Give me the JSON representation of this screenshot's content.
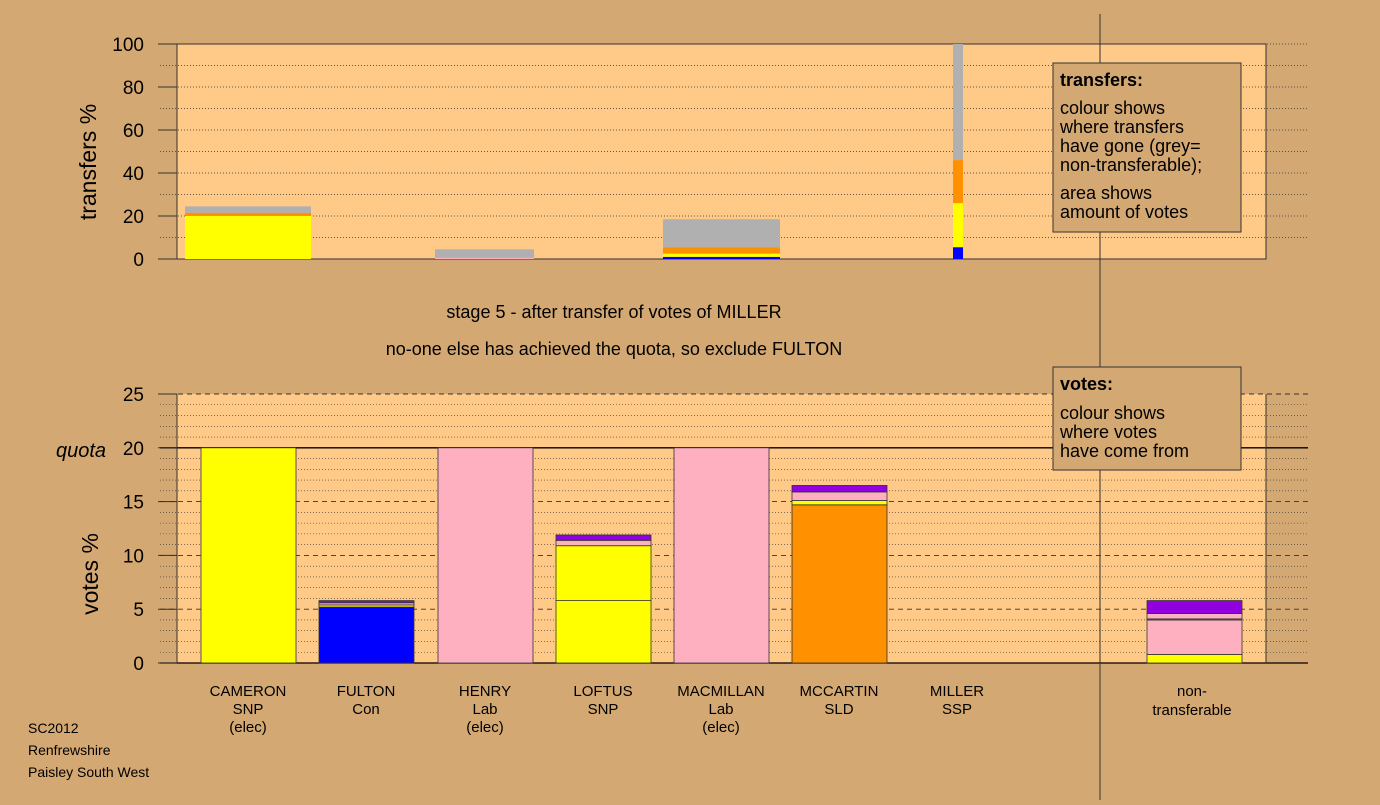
{
  "colors": {
    "background": "#d4a872",
    "plot_bg": "#ffc987",
    "SNP": "#ffff00",
    "Con": "#0000ff",
    "Lab": "#ffb0c0",
    "SLD": "#ff9000",
    "SSP": "#9000e0",
    "non_transferable": "#b0b0b0"
  },
  "transfers_panel": {
    "ylabel": "transfers %",
    "yticks": [
      "0",
      "20",
      "40",
      "60",
      "80",
      "100"
    ],
    "legend": {
      "title": "transfers:",
      "lines1": [
        "colour shows",
        "where transfers",
        "have gone (grey=",
        "non-transferable);"
      ],
      "lines2": [
        "area shows",
        "amount of votes"
      ]
    }
  },
  "stage_text": "stage 5 - after transfer of votes of MILLER",
  "status_text": "no-one else has achieved the quota, so exclude FULTON",
  "votes_panel": {
    "ylabel": "votes %",
    "quota_label": "quota",
    "yticks": [
      "0",
      "5",
      "10",
      "15",
      "20",
      "25"
    ],
    "legend": {
      "title": "votes:",
      "lines": [
        "colour shows",
        "where votes",
        "have come from"
      ]
    }
  },
  "candidates": [
    {
      "name": "CAMERON",
      "party": "SNP",
      "note": "(elec)"
    },
    {
      "name": "FULTON",
      "party": "Con",
      "note": ""
    },
    {
      "name": "HENRY",
      "party": "Lab",
      "note": "(elec)"
    },
    {
      "name": "LOFTUS",
      "party": "SNP",
      "note": ""
    },
    {
      "name": "MACMILLAN",
      "party": "Lab",
      "note": "(elec)"
    },
    {
      "name": "MCCARTIN",
      "party": "SLD",
      "note": ""
    },
    {
      "name": "MILLER",
      "party": "SSP",
      "note": ""
    }
  ],
  "nontransferable_label": [
    "non-",
    "transferable"
  ],
  "footer": {
    "line1": "SC2012",
    "line2": "Renfrewshire",
    "line3": "Paisley South West"
  },
  "chart_data": [
    {
      "type": "bar",
      "ylabel": "transfers %",
      "ylim": [
        0,
        100
      ],
      "bars": [
        {
          "category": "CAMERON",
          "segments": [
            {
              "party": "SNP",
              "value": 20
            },
            {
              "party": "SLD",
              "value": 1.5
            },
            {
              "party": "non-transferable",
              "value": 3
            }
          ]
        },
        {
          "category": "HENRY",
          "segments": [
            {
              "party": "Lab",
              "value": 0.5
            },
            {
              "party": "non-transferable",
              "value": 4
            }
          ]
        },
        {
          "category": "MACMILLAN",
          "segments": [
            {
              "party": "Con",
              "value": 1
            },
            {
              "party": "SNP",
              "value": 1.5
            },
            {
              "party": "SLD",
              "value": 3
            },
            {
              "party": "non-transferable",
              "value": 13
            }
          ]
        },
        {
          "category": "MILLER",
          "segments": [
            {
              "party": "Con",
              "value": 5.5
            },
            {
              "party": "SNP",
              "value": 20.5
            },
            {
              "party": "SLD",
              "value": 20
            },
            {
              "party": "non-transferable",
              "value": 54
            }
          ]
        }
      ]
    },
    {
      "type": "bar",
      "ylabel": "votes %",
      "ylim": [
        0,
        25
      ],
      "quota": 20,
      "bars": [
        {
          "category": "CAMERON",
          "segments": [
            {
              "party": "SNP",
              "value": 20
            }
          ]
        },
        {
          "category": "FULTON",
          "segments": [
            {
              "party": "Con",
              "value": 5.2
            },
            {
              "party": "SNP",
              "value": 0.2
            },
            {
              "party": "Lab",
              "value": 0.2
            },
            {
              "party": "SSP",
              "value": 0.2
            }
          ]
        },
        {
          "category": "HENRY",
          "segments": [
            {
              "party": "Lab",
              "value": 20
            }
          ]
        },
        {
          "category": "LOFTUS",
          "segments": [
            {
              "party": "SNP",
              "value": 5.8
            },
            {
              "party": "SNP",
              "value": 5.1
            },
            {
              "party": "Lab",
              "value": 0.5
            },
            {
              "party": "SSP",
              "value": 0.5
            }
          ]
        },
        {
          "category": "MACMILLAN",
          "segments": [
            {
              "party": "Lab",
              "value": 20
            }
          ]
        },
        {
          "category": "MCCARTIN",
          "segments": [
            {
              "party": "SLD",
              "value": 14.7
            },
            {
              "party": "SNP",
              "value": 0.4
            },
            {
              "party": "Lab",
              "value": 0.8
            },
            {
              "party": "SSP",
              "value": 0.6
            }
          ]
        },
        {
          "category": "MILLER",
          "segments": [
            {
              "party": "SSP",
              "value": 0
            }
          ]
        },
        {
          "category": "non-transferable",
          "segments": [
            {
              "party": "SNP",
              "value": 0.8
            },
            {
              "party": "Lab",
              "value": 3.2
            },
            {
              "party": "SLD",
              "value": 0.1
            },
            {
              "party": "Lab",
              "value": 0.5
            },
            {
              "party": "SSP",
              "value": 1.2
            }
          ]
        }
      ]
    }
  ]
}
